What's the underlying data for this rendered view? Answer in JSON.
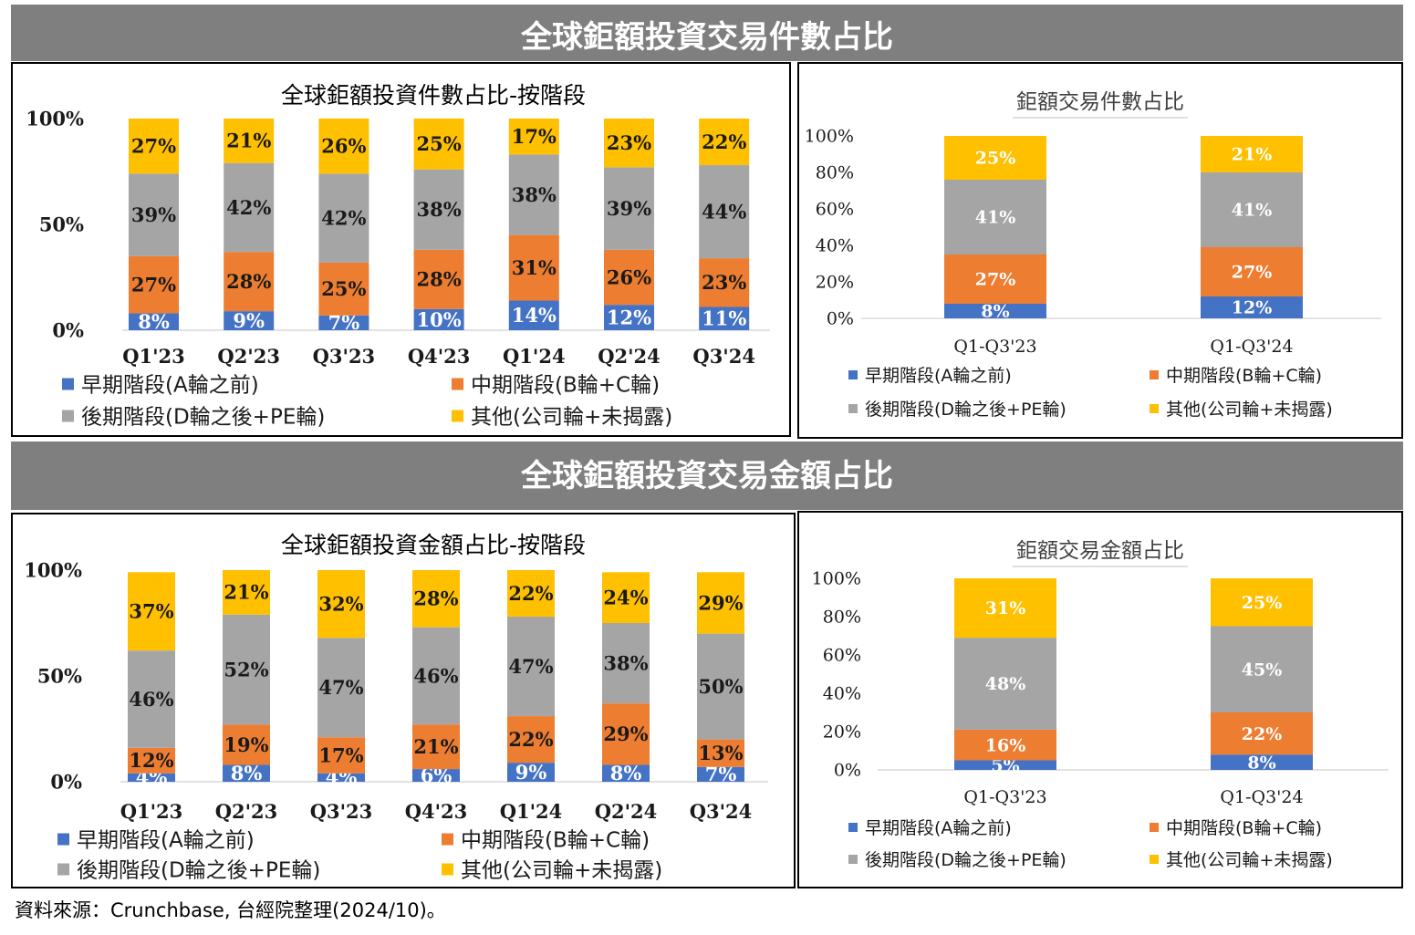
{
  "banners": {
    "count": "全球鉅額投資交易件數占比",
    "amount": "全球鉅額投資交易金額占比"
  },
  "source": "資料來源：Crunchbase, 台經院整理(2024/10)。",
  "colors": {
    "early": "#4472c4",
    "mid": "#ed7d31",
    "late": "#a5a5a5",
    "other": "#ffc000"
  },
  "chart_data": [
    {
      "type": "bar",
      "stacked": true,
      "title": "全球鉅額投資件數占比-按階段",
      "categories": [
        "Q1'23",
        "Q2'23",
        "Q3'23",
        "Q4'23",
        "Q1'24",
        "Q2'24",
        "Q3'24"
      ],
      "yticks": [
        "0%",
        "50%",
        "100%"
      ],
      "ylim": [
        0,
        100
      ],
      "legend_position": "bottom",
      "series": [
        {
          "name": "早期階段(A輪之前)",
          "color_key": "early",
          "values": [
            8,
            9,
            7,
            10,
            14,
            12,
            11
          ],
          "labels": [
            "8%",
            "9%",
            "7%",
            "10%",
            "14%",
            "12%",
            "11%"
          ]
        },
        {
          "name": "中期階段(B輪+C輪)",
          "color_key": "mid",
          "values": [
            27,
            28,
            25,
            28,
            31,
            26,
            23
          ],
          "labels": [
            "27%",
            "28%",
            "25%",
            "28%",
            "31%",
            "26%",
            "23%"
          ]
        },
        {
          "name": "後期階段(D輪之後+PE輪)",
          "color_key": "late",
          "values": [
            39,
            42,
            42,
            38,
            38,
            39,
            44
          ],
          "labels": [
            "39%",
            "42%",
            "42%",
            "38%",
            "38%",
            "39%",
            "44%"
          ]
        },
        {
          "name": "其他(公司輪+未揭露)",
          "color_key": "other",
          "values": [
            27,
            21,
            26,
            25,
            17,
            23,
            22
          ],
          "labels": [
            "27%",
            "21%",
            "26%",
            "25%",
            "17%",
            "23%",
            "22%"
          ]
        }
      ]
    },
    {
      "type": "bar",
      "stacked": true,
      "title": "鉅額交易件數占比",
      "categories": [
        "Q1-Q3'23",
        "Q1-Q3'24"
      ],
      "yticks": [
        "0%",
        "20%",
        "40%",
        "60%",
        "80%",
        "100%"
      ],
      "ylim": [
        0,
        100
      ],
      "legend_position": "bottom",
      "series": [
        {
          "name": "早期階段(A輪之前)",
          "color_key": "early",
          "values": [
            8,
            12
          ],
          "labels": [
            "8%",
            "12%"
          ]
        },
        {
          "name": "中期階段(B輪+C輪)",
          "color_key": "mid",
          "values": [
            27,
            27
          ],
          "labels": [
            "27%",
            "27%"
          ]
        },
        {
          "name": "後期階段(D輪之後+PE輪)",
          "color_key": "late",
          "values": [
            41,
            41
          ],
          "labels": [
            "41%",
            "41%"
          ]
        },
        {
          "name": "其他(公司輪+未揭露)",
          "color_key": "other",
          "values": [
            25,
            21
          ],
          "labels": [
            "25%",
            "21%"
          ]
        }
      ]
    },
    {
      "type": "bar",
      "stacked": true,
      "title": "全球鉅額投資金額占比-按階段",
      "categories": [
        "Q1'23",
        "Q2'23",
        "Q3'23",
        "Q4'23",
        "Q1'24",
        "Q2'24",
        "Q3'24"
      ],
      "yticks": [
        "0%",
        "50%",
        "100%"
      ],
      "ylim": [
        0,
        100
      ],
      "legend_position": "bottom",
      "series": [
        {
          "name": "早期階段(A輪之前)",
          "color_key": "early",
          "values": [
            4,
            8,
            4,
            6,
            9,
            8,
            7
          ],
          "labels": [
            "4%",
            "8%",
            "4%",
            "6%",
            "9%",
            "8%",
            "7%"
          ]
        },
        {
          "name": "中期階段(B輪+C輪)",
          "color_key": "mid",
          "values": [
            12,
            19,
            17,
            21,
            22,
            29,
            13
          ],
          "labels": [
            "12%",
            "19%",
            "17%",
            "21%",
            "22%",
            "29%",
            "13%"
          ]
        },
        {
          "name": "後期階段(D輪之後+PE輪)",
          "color_key": "late",
          "values": [
            46,
            52,
            47,
            46,
            47,
            38,
            50
          ],
          "labels": [
            "46%",
            "52%",
            "47%",
            "46%",
            "47%",
            "38%",
            "50%"
          ]
        },
        {
          "name": "其他(公司輪+未揭露)",
          "color_key": "other",
          "values": [
            37,
            21,
            32,
            28,
            22,
            24,
            29
          ],
          "labels": [
            "37%",
            "21%",
            "32%",
            "28%",
            "22%",
            "24%",
            "29%"
          ]
        }
      ]
    },
    {
      "type": "bar",
      "stacked": true,
      "title": "鉅額交易金額占比",
      "categories": [
        "Q1-Q3'23",
        "Q1-Q3'24"
      ],
      "yticks": [
        "0%",
        "20%",
        "40%",
        "60%",
        "80%",
        "100%"
      ],
      "ylim": [
        0,
        100
      ],
      "legend_position": "bottom",
      "series": [
        {
          "name": "早期階段(A輪之前)",
          "color_key": "early",
          "values": [
            5,
            8
          ],
          "labels": [
            "5%",
            "8%"
          ]
        },
        {
          "name": "中期階段(B輪+C輪)",
          "color_key": "mid",
          "values": [
            16,
            22
          ],
          "labels": [
            "16%",
            "22%"
          ]
        },
        {
          "name": "後期階段(D輪之後+PE輪)",
          "color_key": "late",
          "values": [
            48,
            45
          ],
          "labels": [
            "48%",
            "45%"
          ]
        },
        {
          "name": "其他(公司輪+未揭露)",
          "color_key": "other",
          "values": [
            31,
            25
          ],
          "labels": [
            "31%",
            "25%"
          ]
        }
      ]
    }
  ]
}
